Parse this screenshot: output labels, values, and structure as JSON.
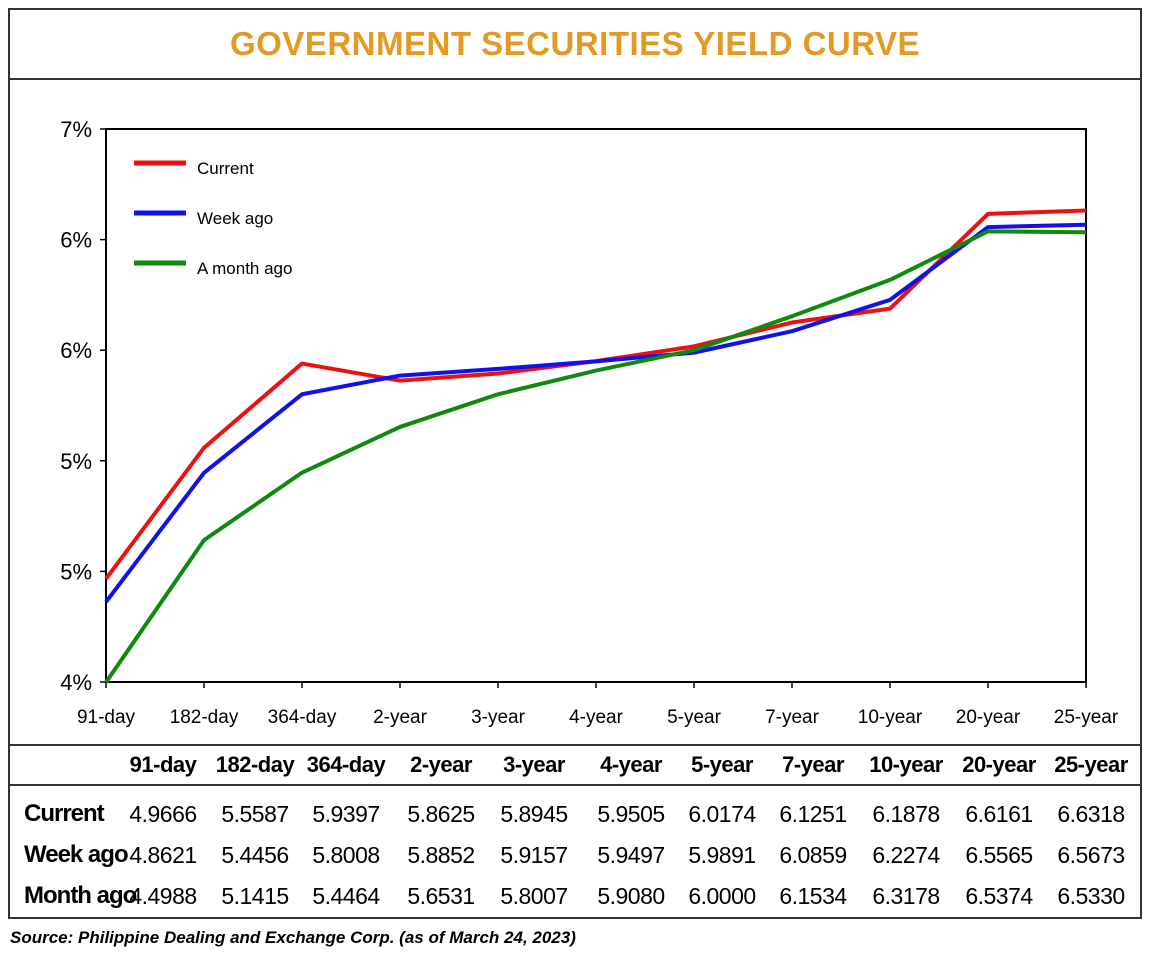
{
  "title": "GOVERNMENT SECURITIES YIELD CURVE",
  "source": "Source: Philippine Dealing and Exchange Corp. (as of March 24, 2023)",
  "chart_data": {
    "type": "line",
    "categories": [
      "91-day",
      "182-day",
      "364-day",
      "2-year",
      "3-year",
      "4-year",
      "5-year",
      "7-year",
      "10-year",
      "20-year",
      "25-year"
    ],
    "y_tick_labels": [
      "4%",
      "5%",
      "5%",
      "6%",
      "6%",
      "7%"
    ],
    "ylim": [
      4.5,
      7.0
    ],
    "grid": false,
    "legend_position": "top-left",
    "series": [
      {
        "name": "Current",
        "color": "#ee1111",
        "values": [
          4.9666,
          5.5587,
          5.9397,
          5.8625,
          5.8945,
          5.9505,
          6.0174,
          6.1251,
          6.1878,
          6.6161,
          6.6318
        ]
      },
      {
        "name": "Week ago",
        "color": "#1111ee",
        "values": [
          4.8621,
          5.4456,
          5.8008,
          5.8852,
          5.9157,
          5.9497,
          5.9891,
          6.0859,
          6.2274,
          6.5565,
          6.5673
        ]
      },
      {
        "name": "A month ago",
        "color": "#0e8a0e",
        "values": [
          4.4988,
          5.1415,
          5.4464,
          5.6531,
          5.8007,
          5.908,
          6.0,
          6.1534,
          6.3178,
          6.5374,
          6.533
        ]
      }
    ]
  },
  "table": {
    "headers": [
      "91-day",
      "182-day",
      "364-day",
      "2-year",
      "3-year",
      "4-year",
      "5-year",
      "7-year",
      "10-year",
      "20-year",
      "25-year"
    ],
    "rows": [
      {
        "label": "Current",
        "values": [
          "4.9666",
          "5.5587",
          "5.9397",
          "5.8625",
          "5.8945",
          "5.9505",
          "6.0174",
          "6.1251",
          "6.1878",
          "6.6161",
          "6.6318"
        ]
      },
      {
        "label": "Week ago",
        "values": [
          "4.8621",
          "5.4456",
          "5.8008",
          "5.8852",
          "5.9157",
          "5.9497",
          "5.9891",
          "6.0859",
          "6.2274",
          "6.5565",
          "6.5673"
        ]
      },
      {
        "label": "Month ago",
        "values": [
          "4.4988",
          "5.1415",
          "5.4464",
          "5.6531",
          "5.8007",
          "5.9080",
          "6.0000",
          "6.1534",
          "6.3178",
          "6.5374",
          "6.5330"
        ]
      }
    ]
  }
}
